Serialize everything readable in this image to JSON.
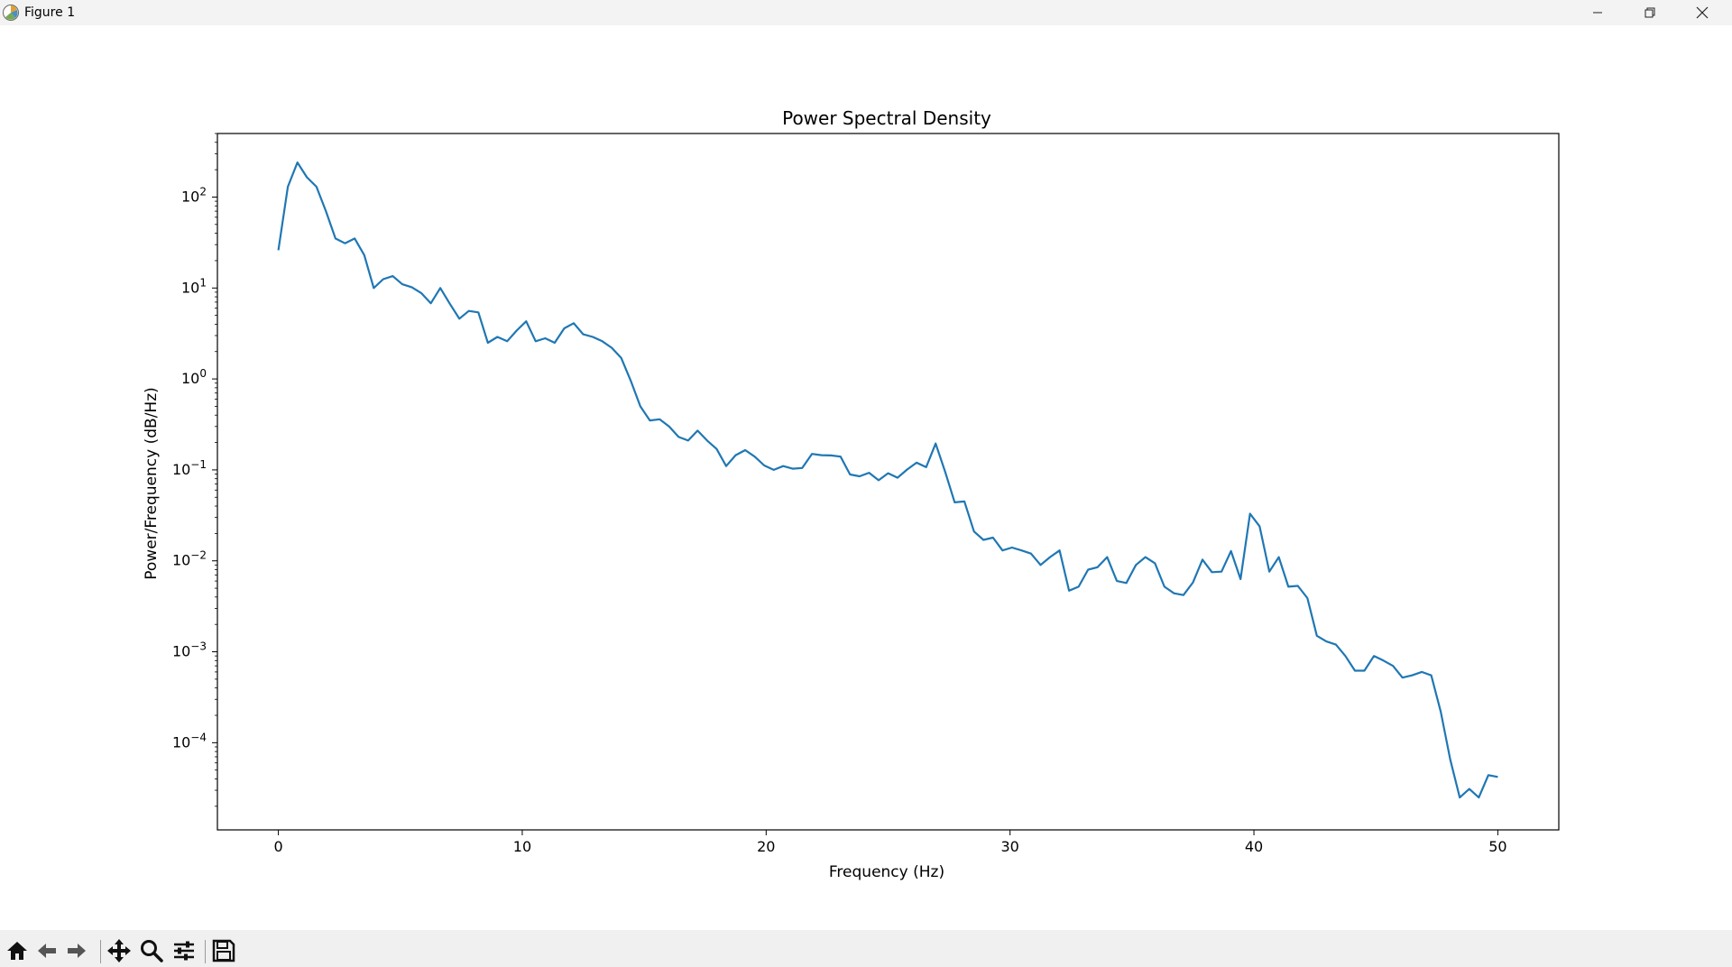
{
  "window": {
    "title": "Figure 1",
    "controls": [
      "minimize-icon",
      "restore-icon",
      "close-icon"
    ]
  },
  "toolbar": {
    "buttons": [
      {
        "name": "home-button",
        "icon": "home-icon"
      },
      {
        "name": "back-button",
        "icon": "arrow-left-icon"
      },
      {
        "name": "forward-button",
        "icon": "arrow-right-icon"
      },
      {
        "name": "pan-button",
        "icon": "move-icon"
      },
      {
        "name": "zoom-button",
        "icon": "magnifier-icon"
      },
      {
        "name": "configure-subplots-button",
        "icon": "sliders-icon"
      },
      {
        "name": "save-button",
        "icon": "floppy-disk-icon"
      }
    ]
  },
  "chart_data": {
    "type": "line",
    "title": "Power Spectral Density",
    "xlabel": "Frequency (Hz)",
    "ylabel": "Power/Frequency (dB/Hz)",
    "xscale": "linear",
    "yscale": "log",
    "xlim": [
      -2.5,
      52.5
    ],
    "ylim": [
      1.1e-05,
      500
    ],
    "xticks": [
      0,
      10,
      20,
      30,
      40,
      50
    ],
    "xtick_labels": [
      "0",
      "10",
      "20",
      "30",
      "40",
      "50"
    ],
    "yticks": [
      0.0001,
      0.001,
      0.01,
      0.1,
      1,
      10,
      100
    ],
    "ytick_exponents": [
      "−4",
      "−3",
      "−2",
      "−1",
      "0",
      "1",
      "2"
    ],
    "ytick_base": "10",
    "grid": false,
    "legend": false,
    "line_color": "#1f77b4",
    "series": [
      {
        "x": [
          0,
          0.39,
          0.78,
          1.17,
          1.56,
          1.95,
          2.34,
          2.73,
          3.13,
          3.52,
          3.91,
          4.3,
          4.69,
          5.08,
          5.47,
          5.86,
          6.25,
          6.64,
          7.03,
          7.42,
          7.81,
          8.2,
          8.59,
          8.98,
          9.38,
          9.77,
          10.16,
          10.55,
          10.94,
          11.33,
          11.72,
          12.11,
          12.5,
          12.89,
          13.28,
          13.67,
          14.06,
          14.45,
          14.84,
          15.23,
          15.63,
          16.02,
          16.41,
          16.8,
          17.19,
          17.58,
          17.97,
          18.36,
          18.75,
          19.14,
          19.53,
          19.92,
          20.31,
          20.7,
          21.09,
          21.48,
          21.88,
          22.27,
          22.66,
          23.05,
          23.44,
          23.83,
          24.22,
          24.61,
          25,
          25.39,
          25.78,
          26.17,
          26.56,
          26.95,
          27.34,
          27.73,
          28.13,
          28.52,
          28.91,
          29.3,
          29.69,
          30.08,
          30.47,
          30.86,
          31.25,
          31.64,
          32.03,
          32.42,
          32.81,
          33.2,
          33.59,
          33.98,
          34.38,
          34.77,
          35.16,
          35.55,
          35.94,
          36.33,
          36.72,
          37.11,
          37.5,
          37.89,
          38.28,
          38.67,
          39.06,
          39.45,
          39.84,
          40.23,
          40.63,
          41.02,
          41.41,
          41.8,
          42.19,
          42.58,
          42.97,
          43.36,
          43.75,
          44.14,
          44.53,
          44.92,
          45.31,
          45.7,
          46.09,
          46.48,
          46.88,
          47.27,
          47.66,
          48.05,
          48.44,
          48.83,
          49.22,
          49.61,
          50
        ],
        "y": [
          26,
          130,
          240,
          165,
          130,
          70,
          35,
          31,
          35,
          23,
          10,
          12.5,
          13.5,
          11,
          10.2,
          8.8,
          6.8,
          10,
          6.7,
          4.6,
          5.6,
          5.4,
          2.5,
          2.9,
          2.6,
          3.4,
          4.3,
          2.6,
          2.8,
          2.5,
          3.6,
          4.1,
          3.1,
          2.9,
          2.6,
          2.2,
          1.7,
          0.95,
          0.5,
          0.35,
          0.36,
          0.3,
          0.23,
          0.21,
          0.27,
          0.21,
          0.17,
          0.11,
          0.145,
          0.165,
          0.14,
          0.112,
          0.1,
          0.11,
          0.103,
          0.105,
          0.15,
          0.145,
          0.144,
          0.14,
          0.089,
          0.085,
          0.093,
          0.077,
          0.092,
          0.082,
          0.101,
          0.12,
          0.107,
          0.195,
          0.095,
          0.044,
          0.045,
          0.021,
          0.017,
          0.018,
          0.013,
          0.014,
          0.013,
          0.012,
          0.009,
          0.011,
          0.013,
          0.0047,
          0.0052,
          0.008,
          0.0085,
          0.011,
          0.006,
          0.0057,
          0.009,
          0.011,
          0.0094,
          0.0052,
          0.0044,
          0.0042,
          0.0058,
          0.0103,
          0.0075,
          0.0076,
          0.0128,
          0.0063,
          0.033,
          0.024,
          0.0076,
          0.011,
          0.0052,
          0.0053,
          0.0039,
          0.0015,
          0.0013,
          0.0012,
          0.0009,
          0.00062,
          0.00062,
          0.0009,
          0.0008,
          0.0007,
          0.00052,
          0.00055,
          0.0006,
          0.00055,
          0.00022,
          6.5e-05,
          2.5e-05,
          3.1e-05,
          2.5e-05,
          4.4e-05,
          4.2e-05
        ]
      }
    ]
  }
}
